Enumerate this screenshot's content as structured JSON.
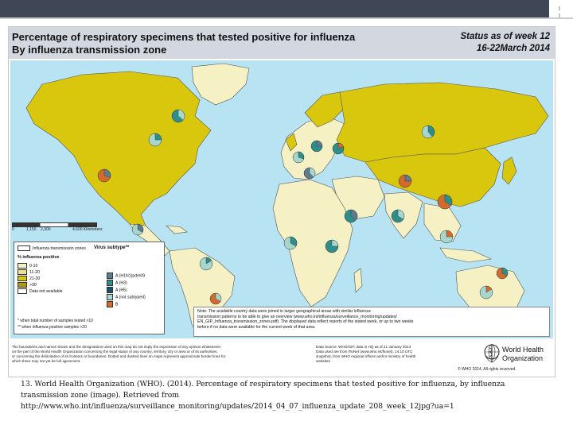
{
  "colors": {
    "slide_bar": "#3f4756",
    "header_band": "#d3d7df",
    "ocean": "#b7e3f2",
    "zone_land": "#d9c70e",
    "no_data_land": "#f6f1c4",
    "border": "#555555",
    "pie_flu_a_h1n1": "#5e7b8f",
    "pie_flu_a_h3": "#2e8f8a",
    "pie_flu_a_not_subtyped": "#a6d6cc",
    "pie_flu_b": "#d36a2e",
    "pie_flu_a_other": "#1f4f6f"
  },
  "header": {
    "title_line1": "Percentage of respiratory specimens that tested positive for influenza",
    "title_line2": "By influenza transmission zone",
    "status_line1": "Status as of week 12",
    "status_line2": "16-22March 2014"
  },
  "scale": {
    "labels": [
      "0",
      "1,150",
      "2,300",
      "4,600 Kilometers"
    ]
  },
  "legend": {
    "tz_label": "Influenza transmission zones",
    "positive_title": "% influenza positive",
    "positive_items": [
      {
        "label": "0-10",
        "color": "#f6f1c4"
      },
      {
        "label": "11-20",
        "color": "#eee08a"
      },
      {
        "label": "21-30",
        "color": "#d9c70e"
      },
      {
        "label": ">30",
        "color": "#b29b06"
      },
      {
        "label": "Data not available",
        "color": "#ffffff"
      }
    ],
    "virus_title": "Virus subtype**",
    "virus_items": [
      {
        "label": "A (H1N1)pdm09",
        "color": "#5e7b8f"
      },
      {
        "label": "A (H3)",
        "color": "#2e8f8a"
      },
      {
        "label": "A (H5)",
        "color": "#1f4f6f"
      },
      {
        "label": "A (not subtyped)",
        "color": "#a6d6cc"
      },
      {
        "label": "B",
        "color": "#d36a2e"
      }
    ],
    "note_1": "*  when total number of samples tested >10",
    "note_2": "** when influenza positive samples >20"
  },
  "note_box": {
    "line1": "Note: The available country data were joined in larger geographical areas with similar influenza",
    "line2": "transmission patterns to be able to give an overview (www.who.int/influenza/surveillance_monitoring/updates/",
    "line3": "EN_GIP_Influenza_transmission_zones.pdf). The displayed data reflect reports of the stated week, or up to two weeks",
    "line4": "before if no data were available for the current week of that area."
  },
  "disclaimer": {
    "line1": "The boundaries and names shown and the designations used on this map do not imply the expression of any opinion whatsoever",
    "line2": "on the part of the World Health Organization concerning the legal status of any country, territory, city or area or of its authorities,",
    "line3": "or concerning the delimitation of its frontiers or boundaries. Dotted and dashed lines on maps represent approximate border lines for",
    "line4": "which there may not yet be full agreement."
  },
  "sources": {
    "line1": "Data Source: WHO/GIP, data in HQ as of 21 January 2014",
    "line2": "Data used are from FluNet (www.who.int/flunet), 14:10 UTC",
    "line3": "snapshot, from WHO regional offices and/or ministry of health",
    "line4": "websites"
  },
  "organization": {
    "name_line1": "World Health",
    "name_line2": "Organization",
    "copyright": "© WHO 2014. All rights reserved."
  },
  "caption": {
    "line1": "13. World Health Organization (WHO). (2014). Percentage of respiratory specimens that tested positive for influenza, by influenza",
    "line2": "transmission zone (image). Retrieved from",
    "line3": "http://www.who.int/influenza/surveillance_monitoring/updates/2014_04_07_influenza_update_208_week_12jpg?ua=1"
  }
}
